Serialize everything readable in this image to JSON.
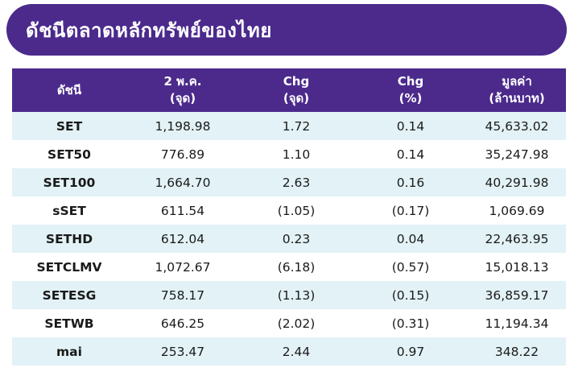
{
  "title": "ดัชนีตลาดหลักทรัพย์ของไทย",
  "colors": {
    "header_bg": "#4b2a8c",
    "stripe_bg": "#e2f2f6",
    "header_text": "#ffffff"
  },
  "table": {
    "headers": [
      {
        "line1": "ดัชนี",
        "line2": ""
      },
      {
        "line1": "2 พ.ค.",
        "line2": "(จุด)"
      },
      {
        "line1": "Chg",
        "line2": "(จุด)"
      },
      {
        "line1": "Chg",
        "line2": "(%)"
      },
      {
        "line1": "มูลค่า",
        "line2": "(ล้านบาท)"
      }
    ],
    "rows": [
      [
        "SET",
        "1,198.98",
        "1.72",
        "0.14",
        "45,633.02"
      ],
      [
        "SET50",
        "776.89",
        "1.10",
        "0.14",
        "35,247.98"
      ],
      [
        "SET100",
        "1,664.70",
        "2.63",
        "0.16",
        "40,291.98"
      ],
      [
        "sSET",
        "611.54",
        "(1.05)",
        "(0.17)",
        "1,069.69"
      ],
      [
        "SETHD",
        "612.04",
        "0.23",
        "0.04",
        "22,463.95"
      ],
      [
        "SETCLMV",
        "1,072.67",
        "(6.18)",
        "(0.57)",
        "15,018.13"
      ],
      [
        "SETESG",
        "758.17",
        "(1.13)",
        "(0.15)",
        "36,859.17"
      ],
      [
        "SETWB",
        "646.25",
        "(2.02)",
        "(0.31)",
        "11,194.34"
      ],
      [
        "mai",
        "253.47",
        "2.44",
        "0.97",
        "348.22"
      ]
    ]
  }
}
